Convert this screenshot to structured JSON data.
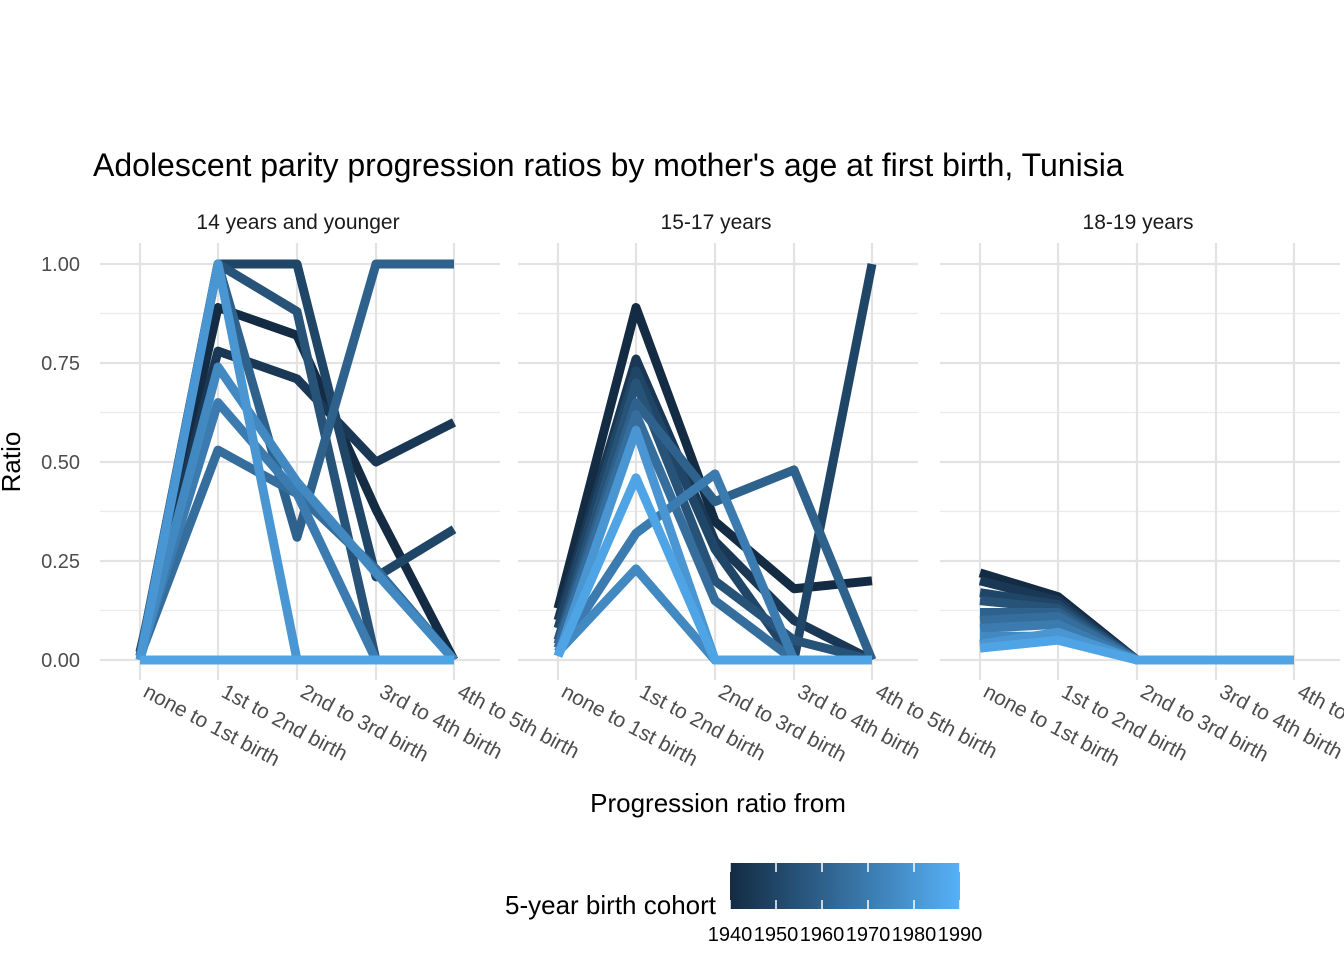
{
  "chart_data": {
    "type": "line",
    "title": "Adolescent parity progression ratios by mother's age at first birth,  Tunisia",
    "xlabel": "Progression ratio from",
    "ylabel": "Ratio",
    "ylim": [
      0,
      1
    ],
    "yticks": [
      "0.00",
      "0.25",
      "0.50",
      "0.75",
      "1.00"
    ],
    "yticks_values": [
      0,
      0.25,
      0.5,
      0.75,
      1.0
    ],
    "grid": true,
    "categories": [
      "none to 1st birth",
      "1st to 2nd birth",
      "2nd to 3rd birth",
      "3rd to 4th birth",
      "4th to 5th birth"
    ],
    "legend": {
      "title": "5-year birth cohort",
      "position": "bottom",
      "type": "colorbar",
      "range": [
        1940,
        1990
      ],
      "breaks": [
        "1940",
        "1950",
        "1960",
        "1970",
        "1980",
        "1990"
      ],
      "low_color": "#132B43",
      "high_color": "#56B1F7"
    },
    "panels": [
      {
        "label": "14 years and younger",
        "series": [
          {
            "cohort": 1940,
            "values": [
              0.02,
              0.89,
              0.82,
              0.38,
              0.0
            ]
          },
          {
            "cohort": 1945,
            "values": [
              0.02,
              0.78,
              0.71,
              0.5,
              0.6
            ]
          },
          {
            "cohort": 1950,
            "values": [
              0.01,
              1.0,
              1.0,
              0.21,
              0.33
            ]
          },
          {
            "cohort": 1955,
            "values": [
              0.01,
              1.0,
              0.88,
              0.0,
              0.0
            ]
          },
          {
            "cohort": 1960,
            "values": [
              0.01,
              1.0,
              0.31,
              1.0,
              1.0
            ]
          },
          {
            "cohort": 1965,
            "values": [
              0.01,
              0.53,
              0.42,
              0.23,
              0.0
            ]
          },
          {
            "cohort": 1970,
            "values": [
              0.01,
              0.65,
              0.42,
              0.0,
              0.0
            ]
          },
          {
            "cohort": 1975,
            "values": [
              0.0,
              0.74,
              0.45,
              0.22,
              0.0
            ]
          },
          {
            "cohort": 1980,
            "values": [
              0.0,
              1.0,
              0.0,
              0.0,
              0.0
            ]
          },
          {
            "cohort": 1985,
            "values": [
              0.0,
              0.0,
              0.0,
              0.0,
              0.0
            ]
          }
        ]
      },
      {
        "label": "15-17 years",
        "series": [
          {
            "cohort": 1940,
            "values": [
              0.13,
              0.89,
              0.35,
              0.18,
              0.2
            ]
          },
          {
            "cohort": 1945,
            "values": [
              0.1,
              0.76,
              0.3,
              0.1,
              0.0
            ]
          },
          {
            "cohort": 1950,
            "values": [
              0.08,
              0.73,
              0.28,
              0.0,
              1.0
            ]
          },
          {
            "cohort": 1955,
            "values": [
              0.05,
              0.7,
              0.2,
              0.05,
              0.0
            ]
          },
          {
            "cohort": 1960,
            "values": [
              0.04,
              0.65,
              0.4,
              0.48,
              0.0
            ]
          },
          {
            "cohort": 1965,
            "values": [
              0.03,
              0.62,
              0.15,
              0.0,
              0.0
            ]
          },
          {
            "cohort": 1970,
            "values": [
              0.02,
              0.32,
              0.47,
              0.0,
              0.0
            ]
          },
          {
            "cohort": 1975,
            "values": [
              0.02,
              0.23,
              0.0,
              0.0,
              0.0
            ]
          },
          {
            "cohort": 1980,
            "values": [
              0.01,
              0.58,
              0.0,
              0.0,
              0.0
            ]
          },
          {
            "cohort": 1985,
            "values": [
              0.01,
              0.46,
              0.0,
              0.0,
              0.0
            ]
          }
        ]
      },
      {
        "label": "18-19 years",
        "series": [
          {
            "cohort": 1940,
            "values": [
              0.22,
              0.16,
              0.0,
              0.0,
              0.0
            ]
          },
          {
            "cohort": 1945,
            "values": [
              0.2,
              0.15,
              0.0,
              0.0,
              0.0
            ]
          },
          {
            "cohort": 1950,
            "values": [
              0.17,
              0.14,
              0.0,
              0.0,
              0.0
            ]
          },
          {
            "cohort": 1955,
            "values": [
              0.15,
              0.13,
              0.0,
              0.0,
              0.0
            ]
          },
          {
            "cohort": 1960,
            "values": [
              0.12,
              0.12,
              0.0,
              0.0,
              0.0
            ]
          },
          {
            "cohort": 1965,
            "values": [
              0.1,
              0.11,
              0.0,
              0.0,
              0.0
            ]
          },
          {
            "cohort": 1970,
            "values": [
              0.08,
              0.09,
              0.0,
              0.0,
              0.0
            ]
          },
          {
            "cohort": 1975,
            "values": [
              0.06,
              0.06,
              0.0,
              0.0,
              0.0
            ]
          },
          {
            "cohort": 1980,
            "values": [
              0.04,
              0.07,
              0.0,
              0.0,
              0.0
            ]
          },
          {
            "cohort": 1985,
            "values": [
              0.03,
              0.05,
              0.0,
              0.0,
              0.0
            ]
          }
        ]
      }
    ]
  }
}
